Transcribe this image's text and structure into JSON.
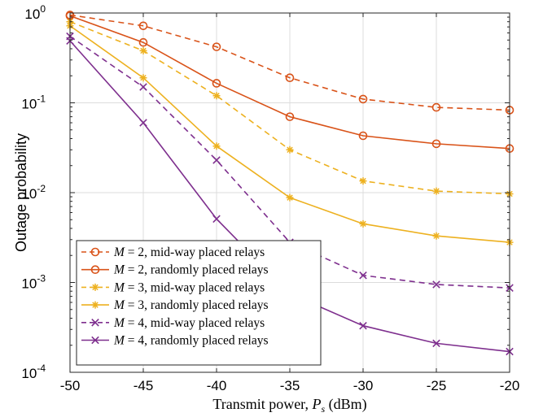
{
  "chart_data": {
    "type": "line",
    "xlabel": "Transmit power, P_s (dBm)",
    "ylabel": "Outage probability",
    "x": [
      -50,
      -45,
      -40,
      -35,
      -30,
      -25,
      -20
    ],
    "xlim": [
      -50,
      -20
    ],
    "ylim": [
      0.0001,
      1
    ],
    "yscale": "log",
    "grid": true,
    "legend_position": "bottom-left",
    "x_ticks": [
      "-50",
      "-45",
      "-40",
      "-35",
      "-30",
      "-25",
      "-20"
    ],
    "y_ticks": [
      {
        "base": "10",
        "exp": "0",
        "value": 1
      },
      {
        "base": "10",
        "exp": "-1",
        "value": 0.1
      },
      {
        "base": "10",
        "exp": "-2",
        "value": 0.01
      },
      {
        "base": "10",
        "exp": "-3",
        "value": 0.001
      },
      {
        "base": "10",
        "exp": "-4",
        "value": 0.0001
      }
    ],
    "series": [
      {
        "name": "M = 2, mid-way placed relays",
        "legend_var": "M",
        "legend_rest": " = 2, mid-way placed relays",
        "color": "#D95319",
        "line": "dashed",
        "marker": "circle",
        "values": [
          0.95,
          0.72,
          0.42,
          0.19,
          0.11,
          0.089,
          0.083
        ]
      },
      {
        "name": "M = 2, randomly placed relays",
        "legend_var": "M",
        "legend_rest": " = 2, randomly placed relays",
        "color": "#D95319",
        "line": "solid",
        "marker": "circle",
        "values": [
          0.93,
          0.47,
          0.165,
          0.07,
          0.043,
          0.035,
          0.031
        ]
      },
      {
        "name": "M = 3, mid-way placed relays",
        "legend_var": "M",
        "legend_rest": " = 3, mid-way placed relays",
        "color": "#EDB120",
        "line": "dashed",
        "marker": "asterisk",
        "values": [
          0.8,
          0.38,
          0.12,
          0.03,
          0.0135,
          0.0104,
          0.0097
        ]
      },
      {
        "name": "M = 3, randomly placed relays",
        "legend_var": "M",
        "legend_rest": " = 3, randomly placed relays",
        "color": "#EDB120",
        "line": "solid",
        "marker": "asterisk",
        "values": [
          0.72,
          0.19,
          0.033,
          0.0088,
          0.0045,
          0.0033,
          0.0028
        ]
      },
      {
        "name": "M = 4, mid-way placed relays",
        "legend_var": "M",
        "legend_rest": " = 4, mid-way placed relays",
        "color": "#7E2F8E",
        "line": "dashed",
        "marker": "x",
        "values": [
          0.55,
          0.15,
          0.023,
          0.0028,
          0.0012,
          0.00095,
          0.00087
        ]
      },
      {
        "name": "M = 4, randomly placed relays",
        "legend_var": "M",
        "legend_rest": " = 4, randomly placed relays",
        "color": "#7E2F8E",
        "line": "solid",
        "marker": "x",
        "values": [
          0.49,
          0.06,
          0.0051,
          0.00075,
          0.00033,
          0.00021,
          0.00017
        ]
      }
    ]
  }
}
